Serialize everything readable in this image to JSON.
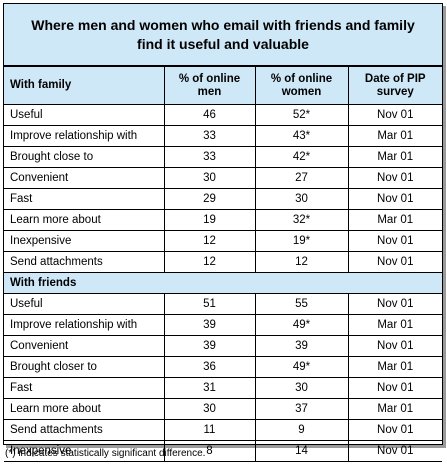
{
  "title": "Where men and women who email with friends and family find it useful and valuable",
  "headers": {
    "label": "With family",
    "men": "% of online men",
    "women": "% of online women",
    "date": "Date of PIP survey"
  },
  "family_rows": [
    {
      "label": "Useful",
      "men": "46",
      "women": "52*",
      "date": "Nov 01"
    },
    {
      "label": "Improve relationship with",
      "men": "33",
      "women": "43*",
      "date": "Mar 01"
    },
    {
      "label": "Brought close to",
      "men": "33",
      "women": "42*",
      "date": "Mar 01"
    },
    {
      "label": "Convenient",
      "men": "30",
      "women": "27",
      "date": "Nov 01"
    },
    {
      "label": "Fast",
      "men": "29",
      "women": "30",
      "date": "Nov 01"
    },
    {
      "label": "Learn more about",
      "men": "19",
      "women": "32*",
      "date": "Mar 01"
    },
    {
      "label": "Inexpensive",
      "men": "12",
      "women": "19*",
      "date": "Nov 01"
    },
    {
      "label": "Send attachments",
      "men": "12",
      "women": "12",
      "date": "Nov 01"
    }
  ],
  "friends_section": "With friends",
  "friends_rows": [
    {
      "label": "Useful",
      "men": "51",
      "women": "55",
      "date": "Nov 01"
    },
    {
      "label": "Improve relationship with",
      "men": "39",
      "women": "49*",
      "date": "Mar 01"
    },
    {
      "label": "Convenient",
      "men": "39",
      "women": "39",
      "date": "Nov 01"
    },
    {
      "label": "Brought closer to",
      "men": "36",
      "women": "49*",
      "date": "Mar 01"
    },
    {
      "label": "Fast",
      "men": "31",
      "women": "30",
      "date": "Nov 01"
    },
    {
      "label": "Learn more  about",
      "men": "30",
      "women": "37",
      "date": "Mar 01"
    },
    {
      "label": "Send attachments",
      "men": "11",
      "women": "9",
      "date": "Nov 01"
    },
    {
      "label": "Inexpensive",
      "men": "8",
      "women": "14",
      "date": "Nov 01"
    }
  ],
  "footnote": "(*) indicates statistically significant difference."
}
